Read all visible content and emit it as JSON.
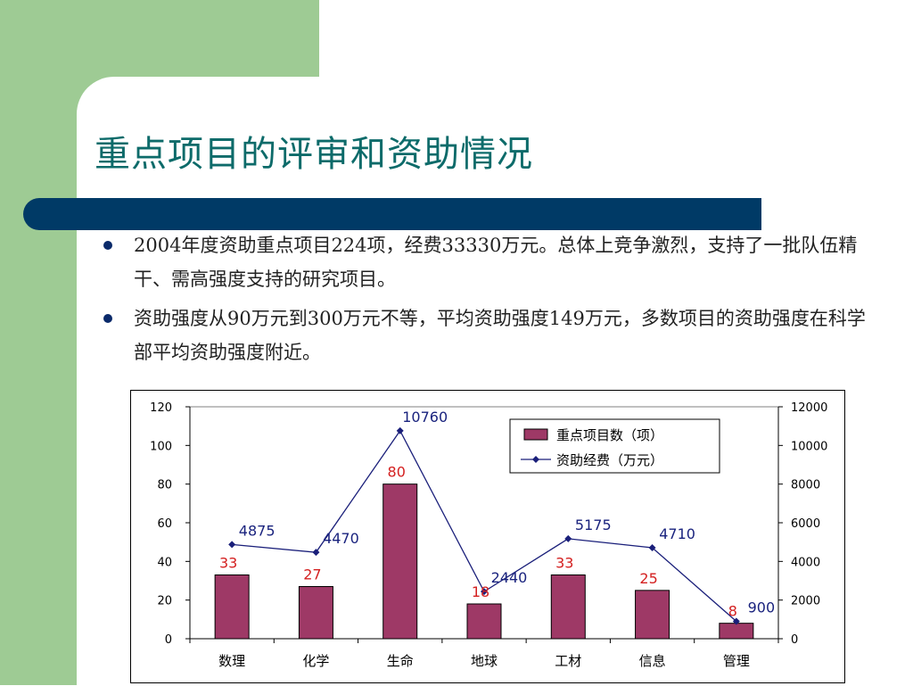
{
  "slide": {
    "title": "重点项目的评审和资助情况",
    "bullets": [
      "2004年度资助重点项目224项，经费33330万元。总体上竞争激烈，支持了一批队伍精干、需高强度支持的研究项目。",
      "资助强度从90万元到300万元不等，平均资助强度149万元，多数项目的资助强度在科学部平均资助强度附近。"
    ]
  },
  "colors": {
    "bar": "#9e3966",
    "line": "#1a1f7a",
    "bar_label": "#d42020",
    "line_label": "#1a237e",
    "green": "#9ecb94",
    "navy": "#003a66",
    "title": "#0d6b6a"
  },
  "chart_data": {
    "type": "bar+line",
    "categories": [
      "数理",
      "化学",
      "生命",
      "地球",
      "工材",
      "信息",
      "管理"
    ],
    "series": [
      {
        "name": "重点项目数（项）",
        "type": "bar",
        "axis": "left",
        "values": [
          33,
          27,
          80,
          18,
          33,
          25,
          8
        ]
      },
      {
        "name": "资助经费（万元）",
        "type": "line",
        "axis": "right",
        "values": [
          4875,
          4470,
          10760,
          2440,
          5175,
          4710,
          900
        ]
      }
    ],
    "left_axis": {
      "ylim": [
        0,
        120
      ],
      "ticks": [
        0,
        20,
        40,
        60,
        80,
        100,
        120
      ]
    },
    "right_axis": {
      "ylim": [
        0,
        12000
      ],
      "ticks": [
        0,
        2000,
        4000,
        6000,
        8000,
        10000,
        12000
      ]
    },
    "legend_position": "top-right",
    "grid": false
  }
}
